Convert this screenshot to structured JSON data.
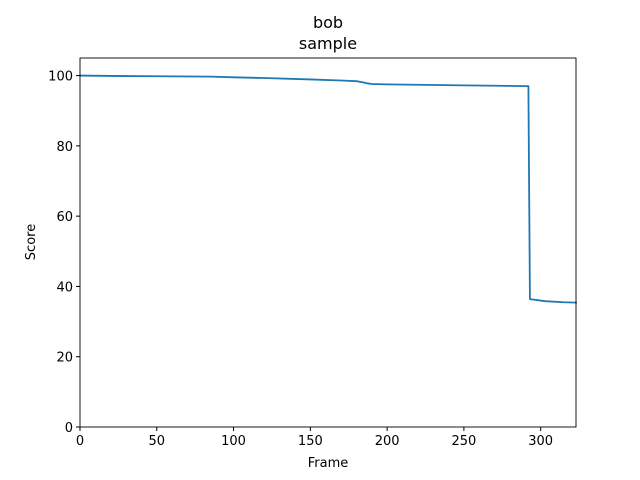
{
  "chart_data": {
    "type": "line",
    "title": "bob",
    "subtitle": "sample",
    "xlabel": "Frame",
    "ylabel": "Score",
    "xlim": [
      0,
      323
    ],
    "ylim": [
      0,
      105
    ],
    "xticks": [
      0,
      50,
      100,
      150,
      200,
      250,
      300
    ],
    "yticks": [
      0,
      20,
      40,
      60,
      80,
      100
    ],
    "grid": false,
    "colors": {
      "line": "#1f77b4",
      "axes": "#000000",
      "background": "#ffffff"
    },
    "series": [
      {
        "x": [
          0,
          20,
          50,
          85,
          100,
          120,
          150,
          170,
          180,
          184,
          187,
          190,
          200,
          250,
          292,
          293,
          303,
          315,
          323
        ],
        "values": [
          100.0,
          99.9,
          99.8,
          99.7,
          99.5,
          99.3,
          98.9,
          98.6,
          98.4,
          98.1,
          97.8,
          97.6,
          97.5,
          97.2,
          97.0,
          36.4,
          35.8,
          35.5,
          35.4
        ]
      }
    ]
  }
}
